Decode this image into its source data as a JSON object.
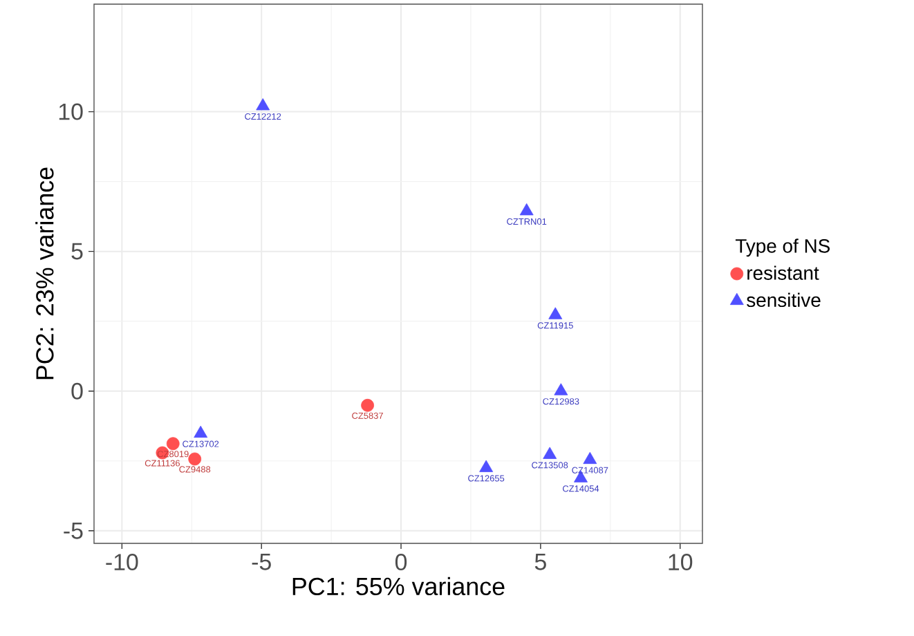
{
  "chart_data": {
    "type": "scatter",
    "xlabel": "PC1: 55% variance",
    "ylabel": "PC2: 23% variance",
    "legend_title": "Type of NS",
    "legend": "right",
    "grid": true,
    "xlim": [
      -11.0,
      10.8
    ],
    "ylim": [
      -5.45,
      13.85
    ],
    "xticks": [
      -10,
      -5,
      0,
      5,
      10
    ],
    "yticks": [
      -5,
      0,
      5,
      10
    ],
    "series": [
      {
        "name": "resistant",
        "color": "#ff5050",
        "marker": "circle",
        "x": [
          -8.17,
          -8.55,
          -7.39,
          -1.2
        ],
        "values": [
          -1.88,
          -2.21,
          -2.43,
          -0.51
        ]
      },
      {
        "name": "sensitive",
        "color": "#5050ff",
        "marker": "triangle",
        "x": [
          -4.95,
          4.5,
          5.53,
          5.73,
          -7.18,
          3.05,
          5.33,
          6.77,
          6.44
        ],
        "values": [
          10.2,
          6.44,
          2.72,
          0.0,
          -1.52,
          -2.75,
          -2.28,
          -2.46,
          -3.12
        ]
      }
    ],
    "annotations": [
      {
        "text": "CZ8019",
        "x": -8.17,
        "y": -1.88
      },
      {
        "text": "CZ11136",
        "x": -8.55,
        "y": -2.21
      },
      {
        "text": "CZ9488",
        "x": -7.39,
        "y": -2.43
      },
      {
        "text": "CZ5837",
        "x": -1.2,
        "y": -0.51
      },
      {
        "text": "CZ12212",
        "x": -4.95,
        "y": 10.2
      },
      {
        "text": "CZTRN01",
        "x": 4.5,
        "y": 6.44
      },
      {
        "text": "CZ11915",
        "x": 5.53,
        "y": 2.72
      },
      {
        "text": "CZ12983",
        "x": 5.73,
        "y": 0.0
      },
      {
        "text": "CZ13702",
        "x": -7.18,
        "y": -1.52
      },
      {
        "text": "CZ12655",
        "x": 3.05,
        "y": -2.75
      },
      {
        "text": "CZ13508",
        "x": 5.33,
        "y": -2.28
      },
      {
        "text": "CZ14087",
        "x": 6.77,
        "y": -2.46
      },
      {
        "text": "CZ14054",
        "x": 6.44,
        "y": -3.12
      }
    ]
  }
}
